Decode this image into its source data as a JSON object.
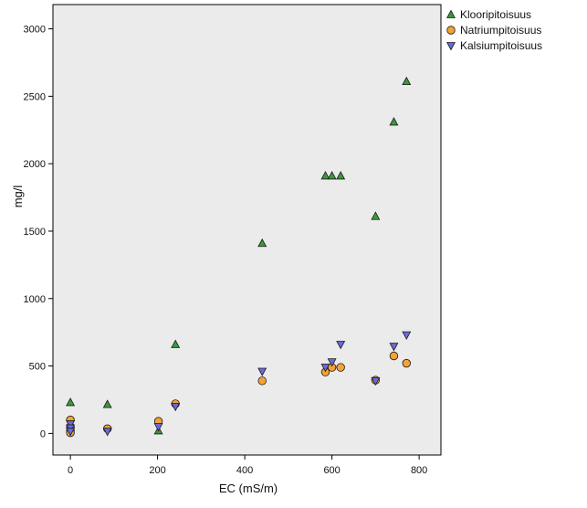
{
  "chart_data": {
    "type": "scatter",
    "title": "",
    "xlabel": "EC (mS/m)",
    "ylabel": "mg/l",
    "xlim": [
      -40,
      850
    ],
    "ylim": [
      -160,
      3180
    ],
    "xticks": [
      0,
      200,
      400,
      600,
      800
    ],
    "yticks": [
      0,
      500,
      1000,
      1500,
      2000,
      2500,
      3000
    ],
    "grid": false,
    "legend_position": "right",
    "series": [
      {
        "name": "Klooripitoisuus",
        "marker": "triangle-up",
        "color": "#3a9a3a",
        "points": [
          {
            "x": 0,
            "y": 230
          },
          {
            "x": 85,
            "y": 215
          },
          {
            "x": 202,
            "y": 20
          },
          {
            "x": 241,
            "y": 660
          },
          {
            "x": 440,
            "y": 1410
          },
          {
            "x": 585,
            "y": 1910
          },
          {
            "x": 600,
            "y": 1910
          },
          {
            "x": 620,
            "y": 1910
          },
          {
            "x": 700,
            "y": 1610
          },
          {
            "x": 742,
            "y": 2310
          },
          {
            "x": 771,
            "y": 2610
          }
        ]
      },
      {
        "name": "Natriumpitoisuus",
        "marker": "circle",
        "color": "#f5a234",
        "points": [
          {
            "x": 0,
            "y": 100
          },
          {
            "x": 0,
            "y": 50
          },
          {
            "x": 0,
            "y": 20
          },
          {
            "x": 0,
            "y": 5
          },
          {
            "x": 85,
            "y": 35
          },
          {
            "x": 202,
            "y": 90
          },
          {
            "x": 241,
            "y": 220
          },
          {
            "x": 440,
            "y": 390
          },
          {
            "x": 585,
            "y": 455
          },
          {
            "x": 600,
            "y": 490
          },
          {
            "x": 620,
            "y": 490
          },
          {
            "x": 700,
            "y": 395
          },
          {
            "x": 742,
            "y": 575
          },
          {
            "x": 771,
            "y": 520
          }
        ]
      },
      {
        "name": "Kalsiumpitoisuus",
        "marker": "triangle-down",
        "color": "#6a6adc",
        "points": [
          {
            "x": 0,
            "y": 70
          },
          {
            "x": 0,
            "y": 40
          },
          {
            "x": 0,
            "y": 15
          },
          {
            "x": 85,
            "y": 15
          },
          {
            "x": 202,
            "y": 50
          },
          {
            "x": 241,
            "y": 200
          },
          {
            "x": 440,
            "y": 460
          },
          {
            "x": 585,
            "y": 490
          },
          {
            "x": 600,
            "y": 530
          },
          {
            "x": 620,
            "y": 660
          },
          {
            "x": 700,
            "y": 390
          },
          {
            "x": 742,
            "y": 645
          },
          {
            "x": 771,
            "y": 730
          }
        ]
      }
    ]
  },
  "style": {
    "plot_background": "#ebebeb",
    "frame_color": "#000000"
  }
}
